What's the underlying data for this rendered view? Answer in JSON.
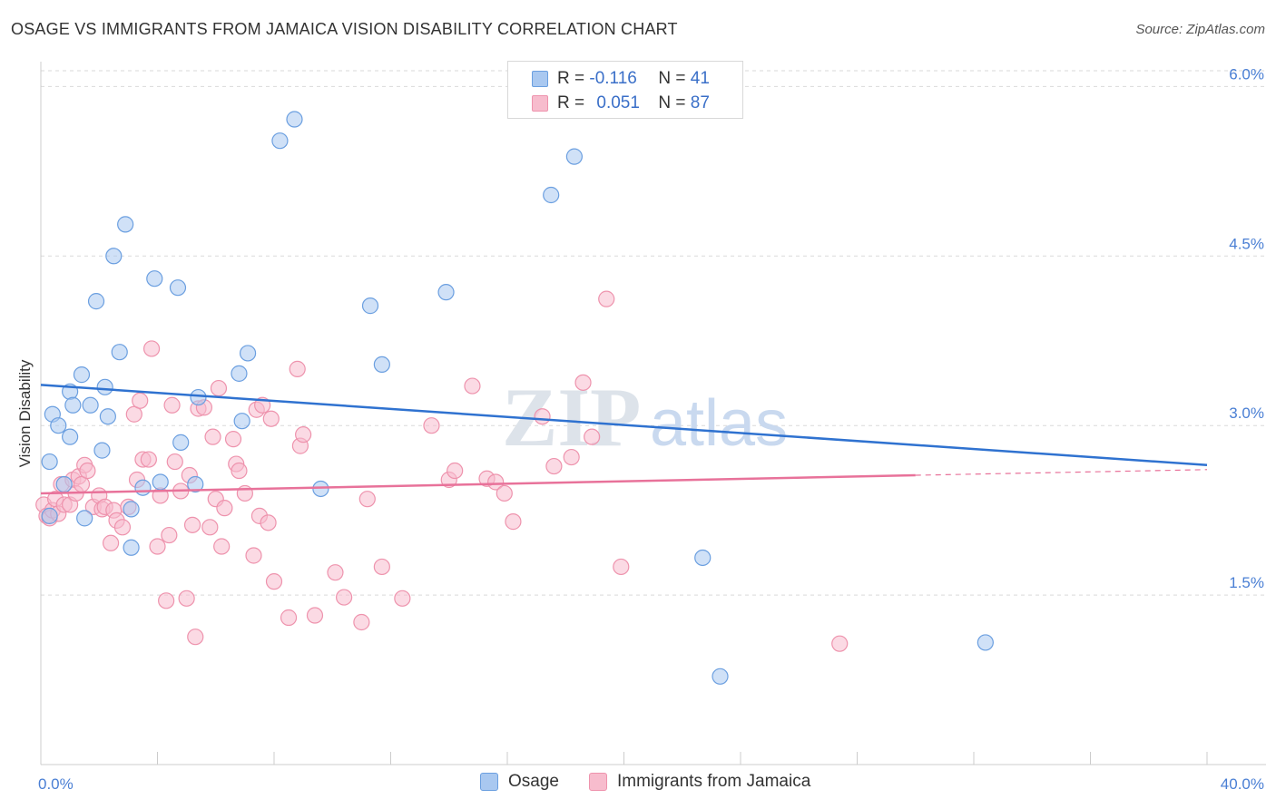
{
  "title": "OSAGE VS IMMIGRANTS FROM JAMAICA VISION DISABILITY CORRELATION CHART",
  "source": "Source: ZipAtlas.com",
  "watermark": "ZIPatlas",
  "legend": {
    "rows": [
      {
        "r_label": "R = ",
        "r_value": "-0.116",
        "n_label": "N = ",
        "n_value": "41"
      },
      {
        "r_label": "R = ",
        "r_value": "0.051",
        "n_label": "N = ",
        "n_value": "87"
      }
    ]
  },
  "bottom_legend": [
    {
      "label": "Osage"
    },
    {
      "label": "Immigrants from Jamaica"
    }
  ],
  "colors": {
    "osage_fill": "#a9c8f0",
    "osage_stroke": "#6b9fe0",
    "osage_line": "#2f72d0",
    "jamaica_fill": "#f7bccd",
    "jamaica_stroke": "#ee93ad",
    "jamaica_line": "#e8729a",
    "tick_text": "#4a7fd4",
    "grid": "#d9d9d9"
  },
  "chart_data": {
    "type": "scatter",
    "title": "OSAGE VS IMMIGRANTS FROM JAMAICA VISION DISABILITY CORRELATION CHART",
    "xlabel": "",
    "ylabel": "Vision Disability",
    "xlim": [
      0,
      40
    ],
    "ylim": [
      0,
      6.3
    ],
    "x_tick_labels": [
      "0.0%",
      "40.0%"
    ],
    "y_ticks": [
      1.5,
      3.0,
      4.5,
      6.0
    ],
    "y_tick_labels": [
      "1.5%",
      "3.0%",
      "4.5%",
      "6.0%"
    ],
    "grid": true,
    "legend_position": "top-center",
    "series": [
      {
        "name": "Osage",
        "points": [
          [
            0.3,
            2.2
          ],
          [
            0.3,
            2.68
          ],
          [
            0.4,
            3.1
          ],
          [
            0.6,
            3.0
          ],
          [
            0.8,
            2.48
          ],
          [
            1.0,
            3.3
          ],
          [
            1.0,
            2.9
          ],
          [
            1.1,
            3.18
          ],
          [
            1.4,
            3.45
          ],
          [
            1.5,
            2.18
          ],
          [
            1.7,
            3.18
          ],
          [
            1.9,
            4.1
          ],
          [
            2.1,
            2.78
          ],
          [
            2.2,
            3.34
          ],
          [
            2.3,
            3.08
          ],
          [
            2.5,
            4.5
          ],
          [
            2.7,
            3.65
          ],
          [
            2.9,
            4.78
          ],
          [
            3.1,
            2.26
          ],
          [
            3.1,
            1.92
          ],
          [
            3.5,
            2.45
          ],
          [
            3.9,
            4.3
          ],
          [
            4.1,
            2.5
          ],
          [
            4.7,
            4.22
          ],
          [
            4.8,
            2.85
          ],
          [
            5.3,
            2.48
          ],
          [
            5.4,
            3.25
          ],
          [
            6.8,
            3.46
          ],
          [
            6.9,
            3.04
          ],
          [
            7.1,
            3.64
          ],
          [
            8.2,
            5.52
          ],
          [
            8.7,
            5.71
          ],
          [
            9.6,
            2.44
          ],
          [
            11.3,
            4.06
          ],
          [
            11.7,
            3.54
          ],
          [
            13.9,
            4.18
          ],
          [
            17.5,
            5.04
          ],
          [
            18.3,
            5.38
          ],
          [
            22.7,
            1.83
          ],
          [
            23.3,
            0.78
          ],
          [
            32.4,
            1.08
          ]
        ]
      },
      {
        "name": "Immigrants from Jamaica",
        "points": [
          [
            0.1,
            2.3
          ],
          [
            0.2,
            2.2
          ],
          [
            0.3,
            2.18
          ],
          [
            0.4,
            2.25
          ],
          [
            0.5,
            2.35
          ],
          [
            0.6,
            2.22
          ],
          [
            0.7,
            2.48
          ],
          [
            0.8,
            2.3
          ],
          [
            1.0,
            2.3
          ],
          [
            1.1,
            2.52
          ],
          [
            1.2,
            2.4
          ],
          [
            1.3,
            2.55
          ],
          [
            1.4,
            2.48
          ],
          [
            1.5,
            2.65
          ],
          [
            1.6,
            2.6
          ],
          [
            1.8,
            2.28
          ],
          [
            2.0,
            2.38
          ],
          [
            2.1,
            2.26
          ],
          [
            2.2,
            2.28
          ],
          [
            2.4,
            1.96
          ],
          [
            2.5,
            2.25
          ],
          [
            2.6,
            2.16
          ],
          [
            2.8,
            2.1
          ],
          [
            3.0,
            2.28
          ],
          [
            3.2,
            3.1
          ],
          [
            3.3,
            2.52
          ],
          [
            3.4,
            3.22
          ],
          [
            3.5,
            2.7
          ],
          [
            3.7,
            2.7
          ],
          [
            3.8,
            3.68
          ],
          [
            4.0,
            1.93
          ],
          [
            4.1,
            2.38
          ],
          [
            4.3,
            1.45
          ],
          [
            4.4,
            2.03
          ],
          [
            4.5,
            3.18
          ],
          [
            4.6,
            2.68
          ],
          [
            4.8,
            2.42
          ],
          [
            5.0,
            1.47
          ],
          [
            5.1,
            2.56
          ],
          [
            5.2,
            2.12
          ],
          [
            5.3,
            1.13
          ],
          [
            5.4,
            3.15
          ],
          [
            5.6,
            3.16
          ],
          [
            5.8,
            2.1
          ],
          [
            5.9,
            2.9
          ],
          [
            6.0,
            2.35
          ],
          [
            6.1,
            3.33
          ],
          [
            6.2,
            1.93
          ],
          [
            6.3,
            2.27
          ],
          [
            6.6,
            2.88
          ],
          [
            6.7,
            2.66
          ],
          [
            6.8,
            2.6
          ],
          [
            7.0,
            2.4
          ],
          [
            7.3,
            1.85
          ],
          [
            7.4,
            3.14
          ],
          [
            7.5,
            2.2
          ],
          [
            7.6,
            3.18
          ],
          [
            7.8,
            2.14
          ],
          [
            7.9,
            3.06
          ],
          [
            8.0,
            1.62
          ],
          [
            8.5,
            1.3
          ],
          [
            8.8,
            3.5
          ],
          [
            8.9,
            2.82
          ],
          [
            9.0,
            2.92
          ],
          [
            9.4,
            1.32
          ],
          [
            10.1,
            1.7
          ],
          [
            10.4,
            1.48
          ],
          [
            11.0,
            1.26
          ],
          [
            11.2,
            2.35
          ],
          [
            11.7,
            1.75
          ],
          [
            12.4,
            1.47
          ],
          [
            13.4,
            3.0
          ],
          [
            14.0,
            2.52
          ],
          [
            14.2,
            2.6
          ],
          [
            14.8,
            3.35
          ],
          [
            15.3,
            2.53
          ],
          [
            15.6,
            2.5
          ],
          [
            15.9,
            2.4
          ],
          [
            16.2,
            2.15
          ],
          [
            17.2,
            3.08
          ],
          [
            17.6,
            2.64
          ],
          [
            18.2,
            2.72
          ],
          [
            18.6,
            3.38
          ],
          [
            18.9,
            2.9
          ],
          [
            19.4,
            4.12
          ],
          [
            19.9,
            1.75
          ],
          [
            27.4,
            1.07
          ]
        ]
      }
    ],
    "trend_lines": [
      {
        "series": "Osage",
        "x": [
          0,
          40
        ],
        "y": [
          3.36,
          2.65
        ],
        "style": "solid"
      },
      {
        "series": "Immigrants from Jamaica",
        "x": [
          0,
          30
        ],
        "y": [
          2.4,
          2.56
        ],
        "style": "solid"
      },
      {
        "series": "Immigrants from Jamaica",
        "x": [
          30,
          40
        ],
        "y": [
          2.56,
          2.61
        ],
        "style": "dashed"
      }
    ]
  }
}
